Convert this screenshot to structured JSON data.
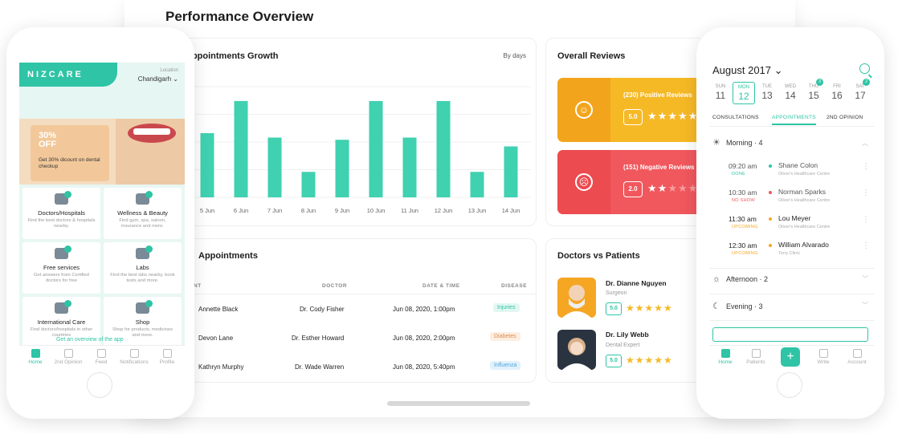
{
  "page_title": "Performance Overview",
  "appointments_growth": {
    "title": "Appointments Growth",
    "filter": "By days",
    "chart_data": {
      "type": "bar",
      "categories": [
        "5 Jun",
        "6 Jun",
        "7 Jun",
        "8 Jun",
        "9 Jun",
        "10 Jun",
        "11 Jun",
        "12 Jun",
        "13 Jun",
        "14 Jun"
      ],
      "values": [
        58,
        87,
        54,
        23,
        52,
        87,
        54,
        87,
        23,
        46
      ],
      "ylim": [
        0,
        100
      ],
      "grid": true,
      "color": "#3fd1b0"
    }
  },
  "appointments_table": {
    "title": "Appointments",
    "headers": [
      "NT",
      "DOCTOR",
      "DATE & TIME",
      "DISEASE"
    ],
    "rows": [
      {
        "patient": "Annette Black",
        "doctor": "Dr. Cody Fisher",
        "datetime": "Jun 08, 2020, 1:00pm",
        "disease": "Injuries",
        "color": "#2ec4a5",
        "bg": "#e3f7f2"
      },
      {
        "patient": "Devon Lane",
        "doctor": "Dr. Esther Howard",
        "datetime": "Jun 08, 2020, 2:00pm",
        "disease": "Diabetes",
        "color": "#e08a4a",
        "bg": "#fdeee2"
      },
      {
        "patient": "Kathryn Murphy",
        "doctor": "Dr. Wade Warren",
        "datetime": "Jun 08, 2020, 5:40pm",
        "disease": "Influenza",
        "color": "#4aa8e0",
        "bg": "#e3f1fb"
      }
    ]
  },
  "overall_reviews": {
    "title": "Overall Reviews",
    "items": [
      {
        "label": "(230) Positive Reviews",
        "score": "5.0",
        "stars": "★★★★★",
        "color": "#f6b926",
        "dark": "#f2a51c",
        "face": "☺"
      },
      {
        "label": "(151) Negative Reviews",
        "score": "2.0",
        "stars": "★★★★★",
        "color": "#f0585d",
        "dark": "#ec4b50",
        "face": "☹"
      }
    ]
  },
  "doctors_vs_patients": {
    "title": "Doctors vs Patients",
    "doctors": [
      {
        "name": "Dr. Dianne Nguyen",
        "role": "Surgeon",
        "score": "5.0",
        "stars": "★★★★★"
      },
      {
        "name": "Dr. Lily Webb",
        "role": "Dental Expert",
        "score": "5.0",
        "stars": "★★★★★"
      }
    ]
  },
  "left_phone": {
    "logo": "NIZCARE",
    "location_label": "Location",
    "location_value": "Chandigarh ⌄",
    "promo_big": "30% OFF",
    "promo_text": "Get 30% dicount on dental checkup",
    "tiles": [
      {
        "title": "Doctors/Hospitals",
        "desc": "Find the best doctors & hospitals nearby."
      },
      {
        "title": "Wellness & Beauty",
        "desc": "Find gym, spa, saloon, insurance and more."
      },
      {
        "title": "Free services",
        "desc": "Get answers from Certified doctors for free"
      },
      {
        "title": "Labs",
        "desc": "Find the best labs nearby, book tests and more."
      },
      {
        "title": "International Care",
        "desc": "Find doctors/hospitals in other countries"
      },
      {
        "title": "Shop",
        "desc": "Shop for products, medicines and more."
      }
    ],
    "overview_link": "Get an overview of the app",
    "nav": [
      "Home",
      "2nd Opinion",
      "Feed",
      "Notifications",
      "Profile"
    ]
  },
  "right_phone": {
    "month": "August 2017 ⌄",
    "days": [
      {
        "name": "SUN",
        "num": "11",
        "badge": ""
      },
      {
        "name": "MON",
        "num": "12",
        "badge": ""
      },
      {
        "name": "TUE",
        "num": "13",
        "badge": ""
      },
      {
        "name": "WED",
        "num": "14",
        "badge": ""
      },
      {
        "name": "THU",
        "num": "15",
        "badge": "3"
      },
      {
        "name": "FRI",
        "num": "16",
        "badge": ""
      },
      {
        "name": "SAT",
        "num": "17",
        "badge": "2"
      }
    ],
    "tabs": [
      "CONSULTATIONS",
      "APPOINTMENTS",
      "2ND OPINION"
    ],
    "morning": "Morning · 4",
    "appointments": [
      {
        "time": "09:20 am",
        "status": "DONE",
        "status_color": "#2ec4a5",
        "name": "Shane Colon",
        "place": "Oliver's Healthcare Centre"
      },
      {
        "time": "10:30 am",
        "status": "NO SHOW",
        "status_color": "#f0585d",
        "name": "Norman Sparks",
        "place": "Oliver's Healthcare Centre"
      },
      {
        "time": "11:30 am",
        "status": "UPCOMING",
        "status_color": "#f6a623",
        "name": "Lou Meyer",
        "place": "Oliver's Healthcare Centre"
      },
      {
        "time": "12:30 am",
        "status": "UPCOMING",
        "status_color": "#f6a623",
        "name": "William Alvarado",
        "place": "Terry Clinic"
      }
    ],
    "afternoon": "Afternoon · 2",
    "evening": "Evening · 3",
    "nav": [
      "Home",
      "Patients",
      "Write",
      "Account"
    ]
  }
}
